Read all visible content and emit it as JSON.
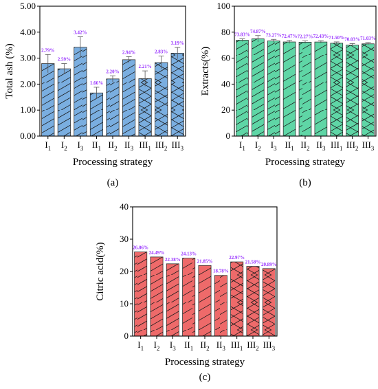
{
  "chart_data": [
    {
      "type": "bar",
      "panel_label": "(a)",
      "categories": [
        {
          "numeral": "I",
          "sub": "1"
        },
        {
          "numeral": "I",
          "sub": "2"
        },
        {
          "numeral": "I",
          "sub": "3"
        },
        {
          "numeral": "II",
          "sub": "1"
        },
        {
          "numeral": "II",
          "sub": "2"
        },
        {
          "numeral": "II",
          "sub": "3"
        },
        {
          "numeral": "III",
          "sub": "1"
        },
        {
          "numeral": "III",
          "sub": "2"
        },
        {
          "numeral": "III",
          "sub": "3"
        }
      ],
      "values": [
        2.79,
        2.59,
        3.42,
        1.66,
        2.2,
        2.94,
        2.21,
        2.83,
        3.19
      ],
      "errors": [
        0.35,
        0.2,
        0.4,
        0.22,
        0.12,
        0.12,
        0.3,
        0.25,
        0.22
      ],
      "data_labels": [
        "2.79%",
        "2.59%",
        "3.42%",
        "1.66%",
        "2.20%",
        "2.94%",
        "2.21%",
        "2.83%",
        "3.19%"
      ],
      "xlabel": "Processing strategy",
      "ylabel": "Total ash (%)",
      "ylim": [
        0,
        5
      ],
      "yticks": [
        "0.00",
        "1.00",
        "2.00",
        "3.00",
        "4.00",
        "5.00"
      ],
      "bar_color": "#7aaee0",
      "grid": false
    },
    {
      "type": "bar",
      "panel_label": "(b)",
      "categories": [
        {
          "numeral": "I",
          "sub": "1"
        },
        {
          "numeral": "I",
          "sub": "2"
        },
        {
          "numeral": "I",
          "sub": "3"
        },
        {
          "numeral": "II",
          "sub": "1"
        },
        {
          "numeral": "II",
          "sub": "2"
        },
        {
          "numeral": "II",
          "sub": "3"
        },
        {
          "numeral": "III",
          "sub": "1"
        },
        {
          "numeral": "III",
          "sub": "2"
        },
        {
          "numeral": "III",
          "sub": "3"
        }
      ],
      "values": [
        73.83,
        74.87,
        73.27,
        72.47,
        72.27,
        72.43,
        71.5,
        70.03,
        71.03
      ],
      "errors": [
        1.0,
        2.5,
        1.2,
        1.2,
        1.0,
        1.0,
        1.0,
        1.2,
        1.0
      ],
      "data_labels": [
        "73.83%",
        "74.87%",
        "73.27%",
        "72.47%",
        "72.27%",
        "72.43%",
        "71.50%",
        "70.03%",
        "71.03%"
      ],
      "xlabel": "Processing strategy",
      "ylabel": "Extracts(%)",
      "ylim": [
        0,
        100
      ],
      "yticks": [
        "0",
        "20",
        "40",
        "60",
        "80",
        "100"
      ],
      "bar_color": "#5fd6a6",
      "grid": false
    },
    {
      "type": "bar",
      "panel_label": "(c)",
      "categories": [
        {
          "numeral": "I",
          "sub": "1"
        },
        {
          "numeral": "I",
          "sub": "2"
        },
        {
          "numeral": "I",
          "sub": "3"
        },
        {
          "numeral": "II",
          "sub": "1"
        },
        {
          "numeral": "II",
          "sub": "2"
        },
        {
          "numeral": "II",
          "sub": "3"
        },
        {
          "numeral": "III",
          "sub": "1"
        },
        {
          "numeral": "III",
          "sub": "2"
        },
        {
          "numeral": "III",
          "sub": "3"
        }
      ],
      "values": [
        26.06,
        24.49,
        22.38,
        24.13,
        21.85,
        18.78,
        22.97,
        21.58,
        20.89
      ],
      "data_labels": [
        "26.06%",
        "24.49%",
        "22.38%",
        "24.13%",
        "21.85%",
        "18.78%",
        "22.97%",
        "21.58%",
        "20.89%"
      ],
      "xlabel": "Processing strategy",
      "ylabel": "Citric acid(%)",
      "ylim": [
        0,
        40
      ],
      "yticks": [
        "0",
        "10",
        "20",
        "30",
        "40"
      ],
      "bar_color": "#ee6a6a",
      "grid": false
    }
  ],
  "style": {
    "label_color": "#9933ff",
    "axis_color": "#000000",
    "hatch_color": "#1a1a1a"
  }
}
